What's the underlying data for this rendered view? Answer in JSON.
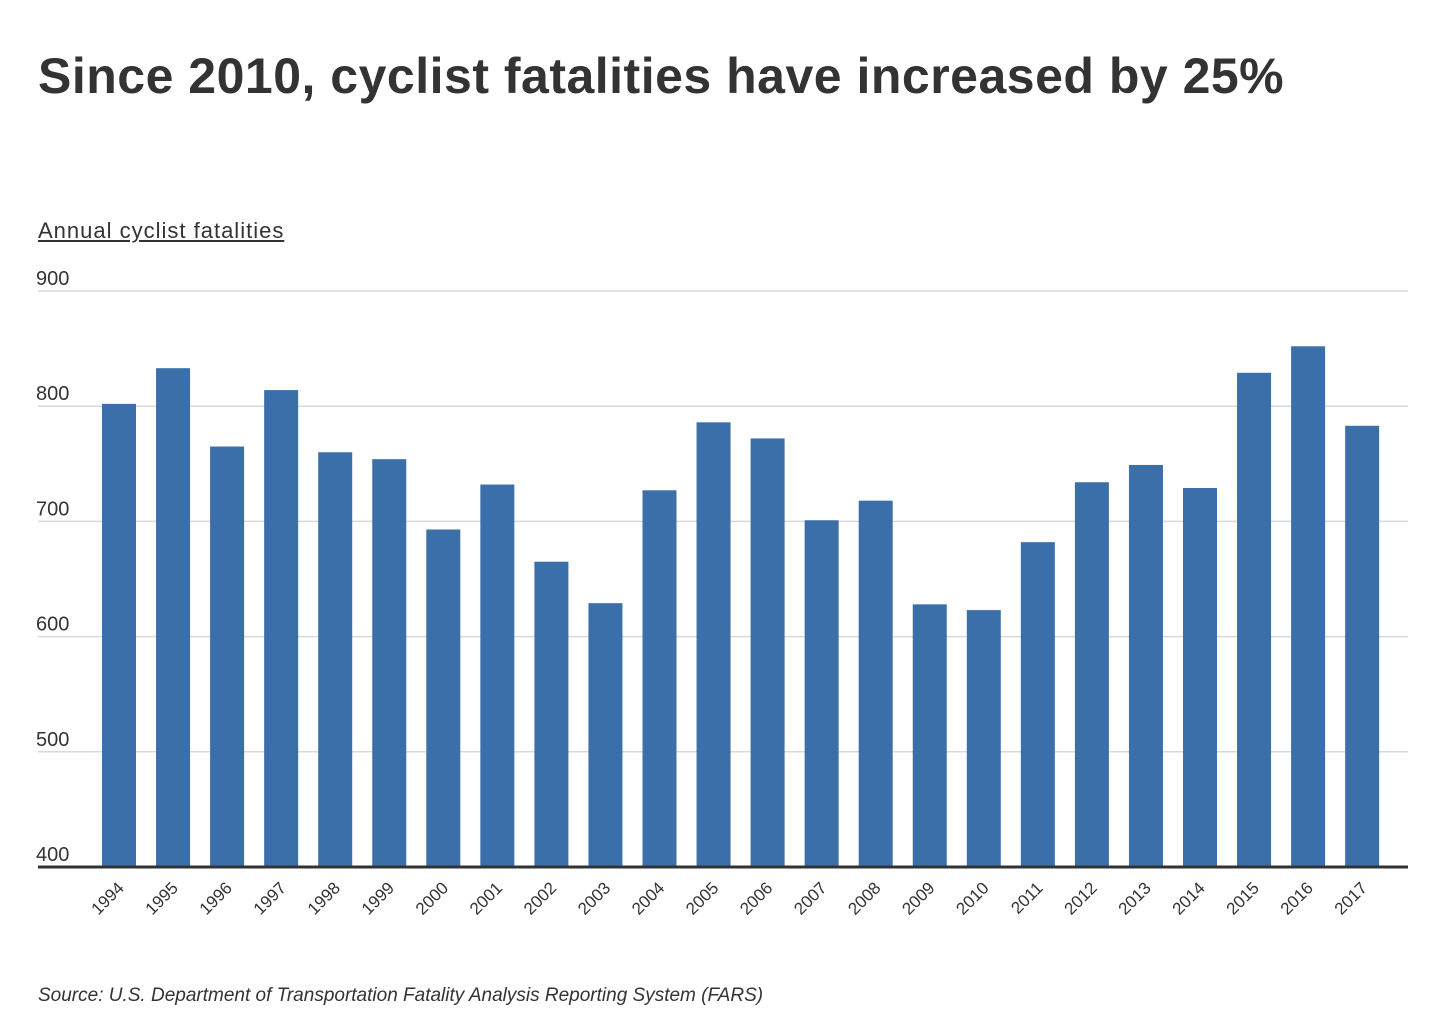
{
  "title": "Since 2010, cyclist fatalities have increased by 25%",
  "source": "Source: U.S. Department of Transportation Fatality Analysis Reporting System (FARS)",
  "chart_data": {
    "type": "bar",
    "title": "Since 2010, cyclist fatalities have increased by 25%",
    "ylabel": "Annual cyclist fatalities",
    "xlabel": "",
    "ylim": [
      400,
      900
    ],
    "yticks": [
      400,
      500,
      600,
      700,
      800,
      900
    ],
    "grid": true,
    "bar_color": "#3b6fa9",
    "categories": [
      "1994",
      "1995",
      "1996",
      "1997",
      "1998",
      "1999",
      "2000",
      "2001",
      "2002",
      "2003",
      "2004",
      "2005",
      "2006",
      "2007",
      "2008",
      "2009",
      "2010",
      "2011",
      "2012",
      "2013",
      "2014",
      "2015",
      "2016",
      "2017"
    ],
    "values": [
      802,
      833,
      765,
      814,
      760,
      754,
      693,
      732,
      665,
      629,
      727,
      786,
      772,
      701,
      718,
      628,
      623,
      682,
      734,
      749,
      729,
      829,
      852,
      783
    ]
  }
}
